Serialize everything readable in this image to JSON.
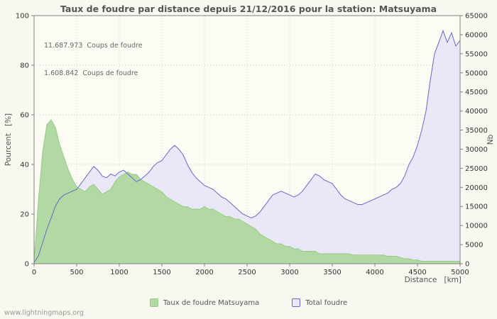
{
  "footer": {
    "watermark": "www.lightningmaps.org"
  },
  "chart_data": {
    "type": "area",
    "title": "Taux de foudre par distance depuis 21/12/2016 pour la station: Matsuyama",
    "xlabel": "Distance   [km]",
    "ylabel_left": "Pourcent   [%]",
    "ylabel_right": "Nb",
    "xlim": [
      0,
      5000
    ],
    "left_ylim": [
      0,
      100
    ],
    "right_ylim": [
      0,
      65000
    ],
    "x_ticks": [
      0,
      500,
      1000,
      1500,
      2000,
      2500,
      3000,
      3500,
      4000,
      4500,
      5000
    ],
    "left_ticks": [
      0,
      20,
      40,
      60,
      80,
      100
    ],
    "right_ticks": [
      0,
      5000,
      10000,
      15000,
      20000,
      25000,
      30000,
      35000,
      40000,
      45000,
      50000,
      55000,
      60000,
      65000
    ],
    "x_step": 50,
    "annotations": [
      "11.687.973  Coups de foudre",
      "1.608.842  Coups de foudre"
    ],
    "legend_position": "bottom-center",
    "grid": true,
    "colors": {
      "page_bg": "#f8f8f0",
      "plot_bg": "#fcfcf5",
      "grid": "#c8c8c8",
      "axis": "#808080",
      "text": "#555555"
    },
    "series": [
      {
        "name": "Taux de foudre Matsuyama",
        "axis": "left",
        "color": "#95cc85",
        "fill": "#b2d9a4",
        "values": [
          1,
          25,
          45,
          56,
          58,
          55,
          48,
          43,
          38,
          34,
          31,
          30,
          29,
          31,
          32,
          30,
          28,
          29,
          30,
          33,
          35,
          36,
          37,
          36,
          36,
          34,
          33,
          32,
          31,
          30,
          29,
          27,
          26,
          25,
          24,
          23,
          23,
          22,
          22,
          22,
          23,
          22,
          22,
          21,
          20,
          19,
          19,
          18,
          18,
          17,
          16,
          15,
          14,
          12,
          11,
          10,
          9,
          8,
          8,
          7,
          7,
          6,
          6,
          5,
          5,
          5,
          5,
          4,
          4,
          4,
          4,
          4,
          4,
          4,
          4,
          3.5,
          3.5,
          3.5,
          3.5,
          3.5,
          3.5,
          3.5,
          3.5,
          3,
          3,
          3,
          2.5,
          2,
          2,
          1.5,
          1.5,
          1,
          1,
          1,
          1,
          1,
          1,
          1,
          1,
          1,
          1
        ]
      },
      {
        "name": "Total foudre",
        "axis": "right",
        "color": "#6868c8",
        "fill": "#eae8f7",
        "values": [
          300,
          2000,
          5500,
          9000,
          12000,
          15000,
          17000,
          18000,
          18500,
          19000,
          19500,
          21000,
          22500,
          24000,
          25500,
          24500,
          23000,
          22500,
          23500,
          23000,
          24000,
          24500,
          23500,
          22500,
          21500,
          22000,
          23000,
          24000,
          25500,
          26500,
          27000,
          28500,
          30000,
          31000,
          30000,
          28500,
          26000,
          24000,
          22500,
          21500,
          20500,
          20000,
          19500,
          18500,
          17500,
          17000,
          16000,
          15000,
          14000,
          13000,
          12500,
          12000,
          12500,
          13500,
          15000,
          16500,
          18000,
          18500,
          19000,
          18500,
          18000,
          17500,
          18000,
          19000,
          20500,
          22000,
          23500,
          23000,
          22000,
          21500,
          21000,
          19500,
          18000,
          17000,
          16500,
          16000,
          15500,
          15500,
          16000,
          16500,
          17000,
          17500,
          18000,
          18500,
          19500,
          20000,
          21000,
          23000,
          26000,
          28000,
          31000,
          35000,
          40000,
          48000,
          55000,
          58000,
          61000,
          58000,
          60500,
          57000,
          58500
        ]
      }
    ]
  }
}
